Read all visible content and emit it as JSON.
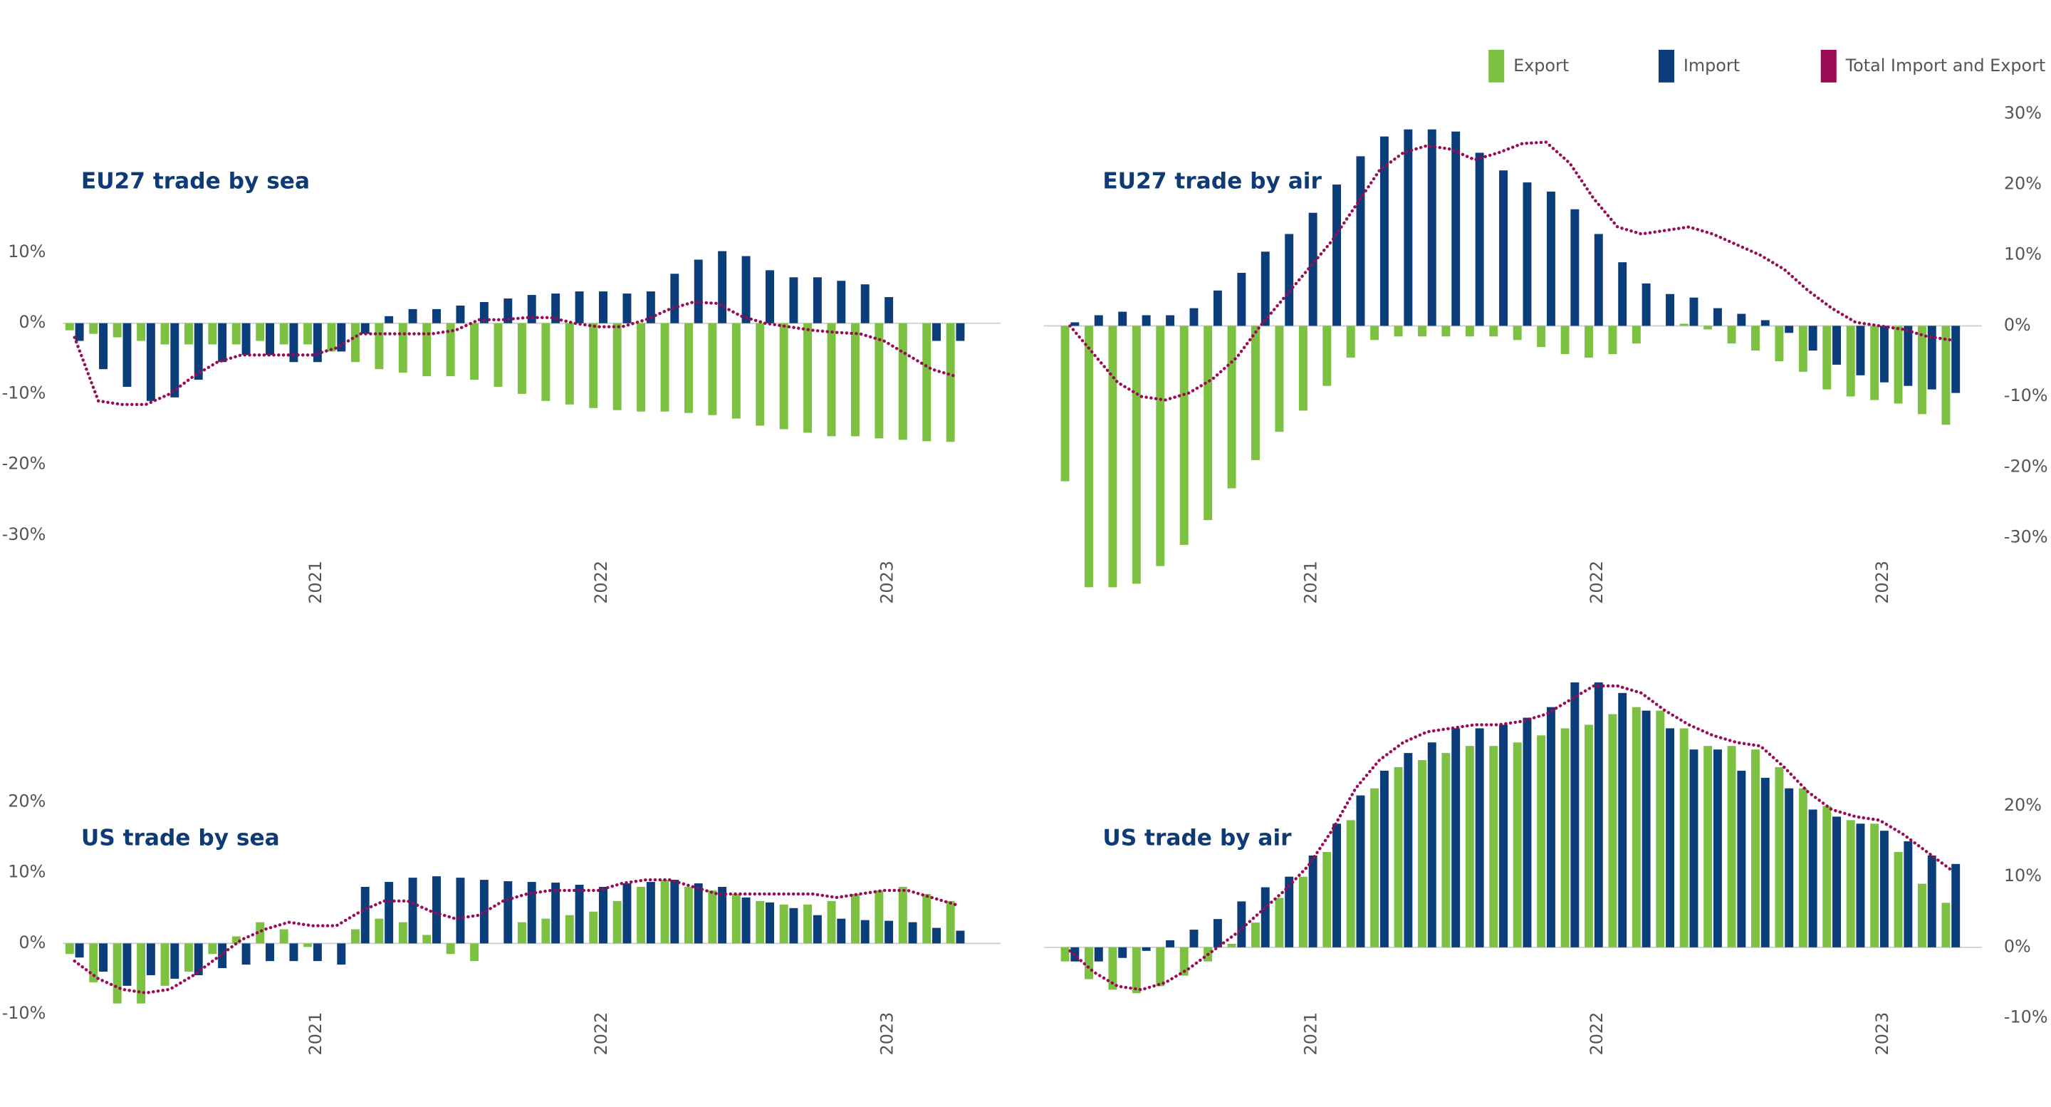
{
  "chart_data": [
    {
      "type": "bar-line",
      "title": "EU27 trade by sea",
      "categories": [
        null,
        null,
        null,
        null,
        null,
        null,
        null,
        null,
        null,
        null,
        "2021",
        null,
        null,
        null,
        null,
        null,
        null,
        null,
        null,
        null,
        null,
        null,
        "2022",
        null,
        null,
        null,
        null,
        null,
        null,
        null,
        null,
        null,
        null,
        null,
        "2023",
        null,
        null,
        null
      ],
      "ylim": [
        -40,
        20
      ],
      "yticks": [
        {
          "value": 10,
          "label": "10%"
        },
        {
          "value": 0,
          "label": "0%"
        },
        {
          "value": -10,
          "label": "-10%"
        },
        {
          "value": -20,
          "label": "-20%"
        },
        {
          "value": -30,
          "label": "-30%"
        }
      ],
      "series": [
        {
          "name": "Export",
          "color": "#7dc142",
          "kind": "bar",
          "values": [
            -1,
            -1.5,
            -2,
            -2.5,
            -3,
            -3,
            -3,
            -3,
            -2.5,
            -3,
            -3,
            -4,
            -5.5,
            -6.5,
            -7,
            -7.5,
            -7.5,
            -8,
            -9,
            -10,
            -11,
            -11.5,
            -12,
            -12.3,
            -12.5,
            -12.5,
            -12.7,
            -13,
            -13.5,
            -14.5,
            -15,
            -15.5,
            -16,
            -16,
            -16.3,
            -16.5,
            -16.7,
            -16.8
          ]
        },
        {
          "name": "Import",
          "color": "#0a3d7a",
          "kind": "bar",
          "values": [
            -2.5,
            -6.5,
            -9,
            -11,
            -10.5,
            -8,
            -5.5,
            -4.5,
            -4.5,
            -5.5,
            -5.5,
            -4,
            -1.5,
            1,
            2,
            2,
            2.5,
            3,
            3.5,
            4,
            4.2,
            4.5,
            4.5,
            4.2,
            4.5,
            7,
            9,
            10.2,
            9.5,
            7.5,
            6.5,
            6.5,
            6,
            5.5,
            3.7,
            0,
            -2.5,
            -2.5
          ]
        },
        {
          "name": "Total Import and Export",
          "color": "#9b0a55",
          "kind": "line",
          "values": [
            -2,
            -11,
            -11.5,
            -11.5,
            -10,
            -7.5,
            -5.5,
            -4.5,
            -4.5,
            -4.5,
            -4.5,
            -3.5,
            -1.5,
            -1.5,
            -1.5,
            -1.5,
            -1,
            0.5,
            0.5,
            0.8,
            0.8,
            0,
            -0.5,
            -0.5,
            0.5,
            2,
            3,
            2.8,
            1,
            0,
            -0.5,
            -1,
            -1.3,
            -1.5,
            -2.5,
            -4.5,
            -6.5,
            -7.5
          ]
        }
      ]
    },
    {
      "type": "bar-line",
      "title": "EU27 trade by air",
      "categories": [
        null,
        null,
        null,
        null,
        null,
        null,
        null,
        null,
        null,
        null,
        "2021",
        null,
        null,
        null,
        null,
        null,
        null,
        null,
        null,
        null,
        null,
        null,
        "2022",
        null,
        null,
        null,
        null,
        null,
        null,
        null,
        null,
        null,
        null,
        null,
        "2023",
        null,
        null,
        null
      ],
      "ylim": [
        -40,
        35
      ],
      "yticks": [
        {
          "value": 30,
          "label": "30%"
        },
        {
          "value": 20,
          "label": "20%"
        },
        {
          "value": 10,
          "label": "10%"
        },
        {
          "value": 0,
          "label": "0%"
        },
        {
          "value": -10,
          "label": "-10%"
        },
        {
          "value": -20,
          "label": "-20%"
        },
        {
          "value": -30,
          "label": "-30%"
        }
      ],
      "series": [
        {
          "name": "Export",
          "color": "#7dc142",
          "kind": "bar",
          "values": [
            -22,
            -37,
            -37,
            -36.5,
            -34,
            -31,
            -27.5,
            -23,
            -19,
            -15,
            -12,
            -8.5,
            -4.5,
            -2,
            -1.5,
            -1.5,
            -1.5,
            -1.5,
            -1.5,
            -2,
            -3,
            -4,
            -4.5,
            -4,
            -2.5,
            0,
            0.3,
            -0.5,
            -2.5,
            -3.5,
            -5,
            -6.5,
            -9,
            -10,
            -10.5,
            -11,
            -12.5,
            -14
          ]
        },
        {
          "name": "Import",
          "color": "#0a3d7a",
          "kind": "bar",
          "values": [
            0.5,
            1.5,
            2,
            1.5,
            1.5,
            2.5,
            5,
            7.5,
            10.5,
            13,
            16,
            20,
            24,
            26.8,
            27.8,
            27.8,
            27.5,
            24.5,
            22,
            20.3,
            19,
            16.5,
            13,
            9,
            6,
            4.5,
            4,
            2.5,
            1.7,
            0.8,
            -1,
            -3.5,
            -5.5,
            -7,
            -8,
            -8.5,
            -9,
            -9.5
          ]
        },
        {
          "name": "Total Import and Export",
          "color": "#9b0a55",
          "kind": "line",
          "values": [
            0,
            -4,
            -8,
            -10,
            -10.5,
            -9.5,
            -7.5,
            -4.5,
            0,
            4,
            8,
            12,
            17,
            22,
            24.5,
            25.5,
            25,
            23.5,
            24.5,
            25.8,
            26,
            23,
            18,
            14,
            13,
            13.5,
            14,
            13,
            11.5,
            10,
            8,
            5,
            2.5,
            0.5,
            0,
            -0.5,
            -1.5,
            -2
          ]
        }
      ]
    },
    {
      "type": "bar-line",
      "title": "US trade by sea",
      "categories": [
        null,
        null,
        null,
        null,
        null,
        null,
        null,
        null,
        null,
        null,
        "2021",
        null,
        null,
        null,
        null,
        null,
        null,
        null,
        null,
        null,
        null,
        null,
        "2022",
        null,
        null,
        null,
        null,
        null,
        null,
        null,
        null,
        null,
        null,
        null,
        "2023",
        null,
        null,
        null
      ],
      "ylim": [
        -12,
        30
      ],
      "yticks": [
        {
          "value": 20,
          "label": "20%"
        },
        {
          "value": 10,
          "label": "10%"
        },
        {
          "value": 0,
          "label": "0%"
        },
        {
          "value": -10,
          "label": "-10%"
        }
      ],
      "series": [
        {
          "name": "Export",
          "color": "#7dc142",
          "kind": "bar",
          "values": [
            -1.5,
            -5.5,
            -8.5,
            -8.5,
            -6,
            -4,
            -1.5,
            1,
            3,
            2,
            -0.5,
            0,
            2,
            3.5,
            3,
            1.2,
            -1.5,
            -2.5,
            0,
            3,
            3.5,
            4,
            4.5,
            6,
            8,
            9,
            8,
            7.5,
            7,
            6,
            5.5,
            5.5,
            6,
            7,
            7.5,
            8,
            7,
            6
          ]
        },
        {
          "name": "Import",
          "color": "#0a3d7a",
          "kind": "bar",
          "values": [
            -2,
            -4,
            -6,
            -4.5,
            -5,
            -4.5,
            -3.5,
            -3,
            -2.5,
            -2.5,
            -2.5,
            -3,
            8,
            8.7,
            9.3,
            9.5,
            9.3,
            9,
            8.8,
            8.7,
            8.6,
            8.3,
            8,
            8.5,
            8.7,
            9,
            8.5,
            8,
            6.5,
            5.8,
            5,
            4,
            3.5,
            3.3,
            3.2,
            3,
            2.2,
            1.8
          ]
        },
        {
          "name": "Total Import and Export",
          "color": "#9b0a55",
          "kind": "line",
          "values": [
            -2.5,
            -5,
            -6.5,
            -7,
            -6.5,
            -4.5,
            -2,
            0.5,
            2,
            3,
            2.5,
            2.5,
            4.5,
            6,
            6,
            4.5,
            3.5,
            4,
            6,
            7,
            7.5,
            7.5,
            7.5,
            8.5,
            9,
            9,
            8,
            7,
            7,
            7,
            7,
            7,
            6.5,
            7,
            7.5,
            7.5,
            6.5,
            5.5
          ]
        }
      ]
    },
    {
      "type": "bar-line",
      "title": "US trade by air",
      "categories": [
        null,
        null,
        null,
        null,
        null,
        null,
        null,
        null,
        null,
        null,
        "2021",
        null,
        null,
        null,
        null,
        null,
        null,
        null,
        null,
        null,
        null,
        null,
        "2022",
        null,
        null,
        null,
        null,
        null,
        null,
        null,
        null,
        null,
        null,
        null,
        "2023",
        null,
        null,
        null
      ],
      "ylim": [
        -12,
        40
      ],
      "yticks": [
        {
          "value": 20,
          "label": "20%"
        },
        {
          "value": 10,
          "label": "10%"
        },
        {
          "value": 0,
          "label": "0%"
        },
        {
          "value": -10,
          "label": "-10%"
        }
      ],
      "series": [
        {
          "name": "Export",
          "color": "#7dc142",
          "kind": "bar",
          "values": [
            -2,
            -4.5,
            -6,
            -6.5,
            -5.5,
            -4,
            -2,
            0.5,
            3.5,
            7,
            10,
            13.5,
            18,
            22.5,
            25.5,
            26.5,
            27.5,
            28.5,
            28.5,
            29,
            30,
            31,
            31.5,
            33,
            34,
            33.5,
            31,
            28.5,
            28.5,
            28,
            25.5,
            22.5,
            20,
            18,
            17.5,
            13.5,
            9,
            6.3
          ]
        },
        {
          "name": "Import",
          "color": "#0a3d7a",
          "kind": "bar",
          "values": [
            -2,
            -2,
            -1.5,
            -0.5,
            1,
            2.5,
            4,
            6.5,
            8.5,
            10,
            13,
            17.5,
            21.5,
            25,
            27.5,
            29,
            31,
            31,
            31.5,
            32.5,
            34,
            37.5,
            37.5,
            36,
            33.5,
            31,
            28,
            28,
            25,
            24,
            22.5,
            19.5,
            18.5,
            17.5,
            16.5,
            15,
            13,
            11.8
          ]
        },
        {
          "name": "Total Import and Export",
          "color": "#9b0a55",
          "kind": "line",
          "values": [
            -0.5,
            -3.5,
            -5.5,
            -6,
            -5,
            -3,
            -0.5,
            2,
            5,
            8,
            11.5,
            16.5,
            22.5,
            26.5,
            29,
            30.5,
            31,
            31.5,
            31.5,
            32,
            33,
            35,
            37,
            37,
            36,
            33.5,
            31.5,
            30,
            29,
            28.5,
            25.5,
            22,
            19.5,
            18.5,
            18,
            16,
            13.5,
            11
          ]
        }
      ]
    }
  ]
}
